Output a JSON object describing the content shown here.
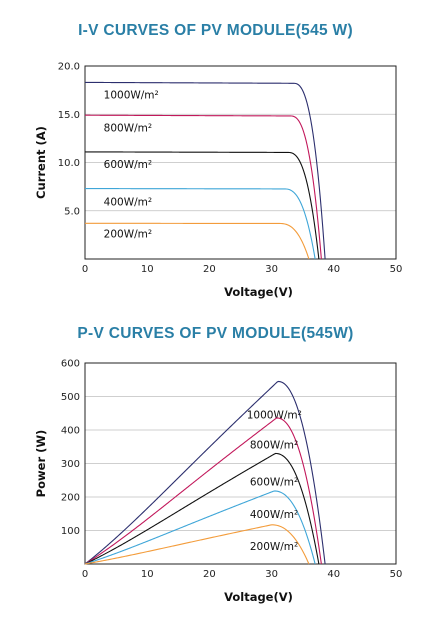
{
  "colors": {
    "title": "#2a7fa6",
    "grid": "#bfbfbf",
    "axis": "#222222"
  },
  "chart_data": [
    {
      "type": "line",
      "title": "I-V CURVES OF PV MODULE(545 W)",
      "xlabel": "Voltage(V)",
      "ylabel": "Current (A)",
      "xlim": [
        0,
        50
      ],
      "ylim": [
        0,
        20
      ],
      "xticks": [
        0,
        10,
        20,
        30,
        40,
        50
      ],
      "yticks": [
        5.0,
        10.0,
        15.0,
        20.0
      ],
      "ytick_labels": [
        "5.0",
        "10.0",
        "15.0",
        "20.0"
      ],
      "grid": true,
      "series": [
        {
          "name": "1000W/m²",
          "color": "#2c2f6e",
          "isc": 18.3,
          "knee": 33.5,
          "voc": 38.6,
          "label_pos": {
            "x": 3,
            "y": 17.0
          }
        },
        {
          "name": "800W/m²",
          "color": "#c2185b",
          "isc": 14.9,
          "knee": 33.0,
          "voc": 38.0,
          "label_pos": {
            "x": 3,
            "y": 13.6
          }
        },
        {
          "name": "600W/m²",
          "color": "#111111",
          "isc": 11.1,
          "knee": 32.6,
          "voc": 37.6,
          "label_pos": {
            "x": 3,
            "y": 9.8
          }
        },
        {
          "name": "400W/m²",
          "color": "#3fa6d8",
          "isc": 7.3,
          "knee": 32.0,
          "voc": 37.0,
          "label_pos": {
            "x": 3,
            "y": 5.9
          }
        },
        {
          "name": "200W/m²",
          "color": "#f39c3b",
          "isc": 3.7,
          "knee": 31.2,
          "voc": 36.0,
          "label_pos": {
            "x": 3,
            "y": 2.6
          }
        }
      ]
    },
    {
      "type": "line",
      "title": "P-V CURVES OF PV MODULE(545W)",
      "xlabel": "Voltage(V)",
      "ylabel": "Power (W)",
      "xlim": [
        0,
        50
      ],
      "ylim": [
        0,
        600
      ],
      "xticks": [
        0,
        10,
        20,
        30,
        40,
        50
      ],
      "yticks": [
        100,
        200,
        300,
        400,
        500,
        600
      ],
      "grid": true,
      "series": [
        {
          "name": "1000W/m²",
          "color": "#2c2f6e",
          "pmax": 545,
          "vmp": 31.0,
          "voc": 38.6,
          "label_pos": {
            "x": 26,
            "y": 445
          }
        },
        {
          "name": "800W/m²",
          "color": "#c2185b",
          "pmax": 436,
          "vmp": 30.8,
          "voc": 38.0,
          "label_pos": {
            "x": 26.5,
            "y": 355
          }
        },
        {
          "name": "600W/m²",
          "color": "#111111",
          "pmax": 330,
          "vmp": 30.6,
          "voc": 37.6,
          "label_pos": {
            "x": 26.5,
            "y": 245
          }
        },
        {
          "name": "400W/m²",
          "color": "#3fa6d8",
          "pmax": 218,
          "vmp": 30.4,
          "voc": 37.0,
          "label_pos": {
            "x": 26.5,
            "y": 148
          }
        },
        {
          "name": "200W/m²",
          "color": "#f39c3b",
          "pmax": 117,
          "vmp": 30.0,
          "voc": 36.0,
          "label_pos": {
            "x": 26.5,
            "y": 52
          }
        }
      ]
    }
  ]
}
